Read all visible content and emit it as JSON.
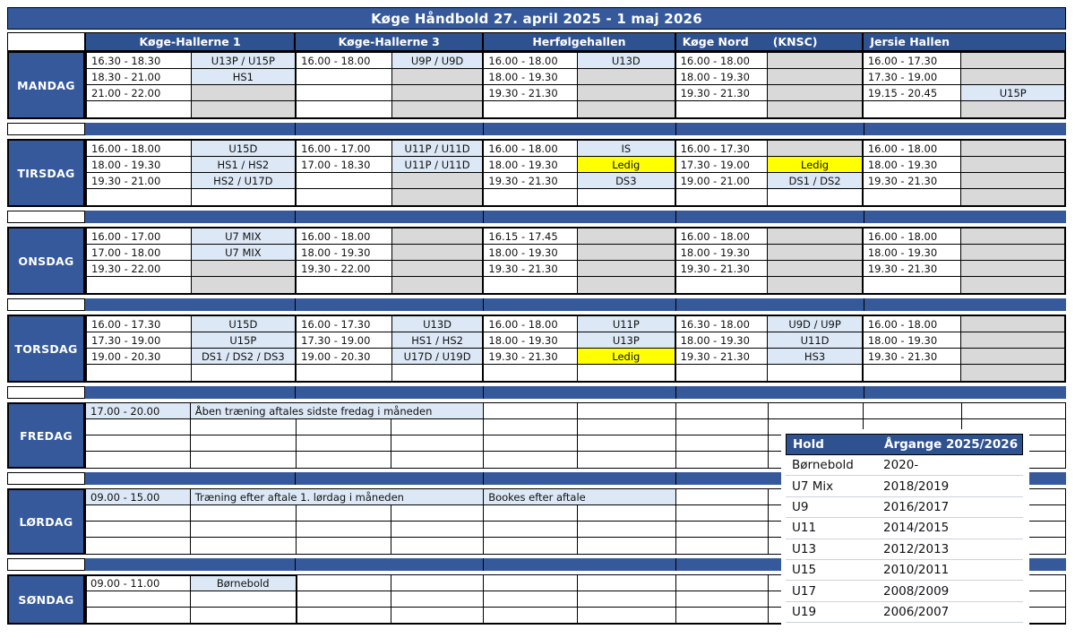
{
  "title": "Køge Håndbold 27. april 2025 - 1 maj 2026",
  "colors": {
    "band_blue": "#35599b",
    "header_blue": "#2e5190",
    "team_lightblue": "#dce8f6",
    "unavailable_gray": "#d9d9d9",
    "free_yellow": "#ffff00"
  },
  "halls": [
    {
      "label": "Køge-Hallerne 1",
      "align": "center"
    },
    {
      "label": "Køge-Hallerne 3",
      "align": "center"
    },
    {
      "label": "Herfølgehallen",
      "align": "center"
    },
    {
      "label": "Køge Nord",
      "label2": "(KNSC)",
      "align": "left"
    },
    {
      "label": "Jersie Hallen",
      "align": "left"
    }
  ],
  "days": [
    {
      "label": "MANDAG",
      "frame": "thick",
      "rows": [
        [
          {
            "t": "16.30 - 18.30"
          },
          {
            "t": "U13P / U15P",
            "bg": "b"
          },
          {
            "t": "16.00 - 18.00"
          },
          {
            "t": "U9P / U9D",
            "bg": "b"
          },
          {
            "t": "16.00 - 18.00"
          },
          {
            "t": "U13D",
            "bg": "b"
          },
          {
            "t": "16.00 - 18.00"
          },
          {
            "bg": "g"
          },
          {
            "t": "16.00 - 17.30"
          },
          {
            "bg": "g"
          }
        ],
        [
          {
            "t": "18.30 - 21.00"
          },
          {
            "t": "HS1",
            "bg": "b"
          },
          {},
          {
            "bg": "g"
          },
          {
            "t": "18.00 - 19.30"
          },
          {
            "bg": "g"
          },
          {
            "t": "18.00 - 19.30"
          },
          {
            "bg": "g"
          },
          {
            "t": "17.30 - 19.00"
          },
          {
            "bg": "g"
          }
        ],
        [
          {
            "t": "21.00 - 22.00"
          },
          {
            "bg": "g"
          },
          {},
          {
            "bg": "g"
          },
          {
            "t": "19.30 - 21.30"
          },
          {
            "bg": "g"
          },
          {
            "t": "19.30 - 21.30"
          },
          {
            "bg": "g"
          },
          {
            "t": "19.15 - 20.45"
          },
          {
            "t": "U15P",
            "bg": "b"
          }
        ],
        [
          {},
          {
            "bg": "g"
          },
          {},
          {
            "bg": "g"
          },
          {},
          {
            "bg": "g"
          },
          {},
          {
            "bg": "g"
          },
          {},
          {
            "bg": "g"
          }
        ]
      ]
    },
    {
      "label": "TIRSDAG",
      "frame": "thick",
      "rows": [
        [
          {
            "t": "16.00 - 18.00"
          },
          {
            "t": "U15D",
            "bg": "b"
          },
          {
            "t": "16.00 - 17.00"
          },
          {
            "t": "U11P / U11D",
            "bg": "b"
          },
          {
            "t": "16.00 - 18.00"
          },
          {
            "t": "IS",
            "bg": "b"
          },
          {
            "t": "16.00 - 17.30"
          },
          {
            "bg": "g"
          },
          {
            "t": "16.00 - 18.00"
          },
          {
            "bg": "g"
          }
        ],
        [
          {
            "t": "18.00 - 19.30"
          },
          {
            "t": "HS1 / HS2",
            "bg": "b"
          },
          {
            "t": "17.00 - 18.30"
          },
          {
            "t": "U11P / U11D",
            "bg": "b"
          },
          {
            "t": "18.00 - 19.30"
          },
          {
            "t": "Ledig",
            "bg": "y"
          },
          {
            "t": "17.30 - 19.00"
          },
          {
            "t": "Ledig",
            "bg": "y"
          },
          {
            "t": "18.00 - 19.30"
          },
          {
            "bg": "g"
          }
        ],
        [
          {
            "t": "19.30 - 21.00"
          },
          {
            "t": "HS2 / U17D",
            "bg": "b"
          },
          {},
          {
            "bg": "g"
          },
          {
            "t": "19.30 - 21.30"
          },
          {
            "t": "DS3",
            "bg": "b"
          },
          {
            "t": "19.00 - 21.00"
          },
          {
            "t": "DS1 / DS2",
            "bg": "b"
          },
          {
            "t": "19.30 - 21.30"
          },
          {
            "bg": "g"
          }
        ],
        [
          {},
          {},
          {},
          {
            "bg": "g"
          },
          {},
          {},
          {},
          {},
          {},
          {
            "bg": "g"
          }
        ]
      ]
    },
    {
      "label": "ONSDAG",
      "frame": "thick",
      "rows": [
        [
          {
            "t": "16.00 - 17.00"
          },
          {
            "t": "U7 MIX",
            "bg": "b"
          },
          {
            "t": "16.00 - 18.00"
          },
          {
            "bg": "g"
          },
          {
            "t": "16.15 - 17.45"
          },
          {
            "bg": "g"
          },
          {
            "t": "16.00 - 18.00"
          },
          {
            "bg": "g"
          },
          {
            "t": "16.00 - 18.00"
          },
          {
            "bg": "g"
          }
        ],
        [
          {
            "t": "17.00 - 18.00"
          },
          {
            "t": "U7 MIX",
            "bg": "b"
          },
          {
            "t": "18.00 - 19.30"
          },
          {
            "bg": "g"
          },
          {
            "t": "18.00 - 19.30"
          },
          {
            "bg": "g"
          },
          {
            "t": "18.00 - 19.30"
          },
          {
            "bg": "g"
          },
          {
            "t": "18.00 - 19.30"
          },
          {
            "bg": "g"
          }
        ],
        [
          {
            "t": "19.30 - 22.00"
          },
          {
            "bg": "g"
          },
          {
            "t": "19.30 - 22.00"
          },
          {
            "bg": "g"
          },
          {
            "t": "19.30 - 21.30"
          },
          {
            "bg": "g"
          },
          {
            "t": "19.30 - 21.30"
          },
          {
            "bg": "g"
          },
          {
            "t": "19.30 - 21.30"
          },
          {
            "bg": "g"
          }
        ],
        [
          {},
          {
            "bg": "g"
          },
          {},
          {
            "bg": "g"
          },
          {},
          {
            "bg": "g"
          },
          {},
          {
            "bg": "g"
          },
          {},
          {
            "bg": "g"
          }
        ]
      ]
    },
    {
      "label": "TORSDAG",
      "frame": "thick",
      "rows": [
        [
          {
            "t": "16.00 - 17.30"
          },
          {
            "t": "U15D",
            "bg": "b"
          },
          {
            "t": "16.00 - 17.30"
          },
          {
            "t": "U13D",
            "bg": "b"
          },
          {
            "t": "16.00 - 18.00"
          },
          {
            "t": "U11P",
            "bg": "b"
          },
          {
            "t": "16.30 - 18.00"
          },
          {
            "t": "U9D / U9P",
            "bg": "b"
          },
          {
            "t": "16.00 - 18.00"
          },
          {
            "bg": "g"
          }
        ],
        [
          {
            "t": "17.30 - 19.00"
          },
          {
            "t": "U15P",
            "bg": "b"
          },
          {
            "t": "17.30 - 19.00"
          },
          {
            "t": "HS1 / HS2",
            "bg": "b"
          },
          {
            "t": "18.00 - 19.30"
          },
          {
            "t": "U13P",
            "bg": "b"
          },
          {
            "t": "18.00 - 19.30"
          },
          {
            "t": "U11D",
            "bg": "b"
          },
          {
            "t": "18.00 - 19.30"
          },
          {
            "bg": "g"
          }
        ],
        [
          {
            "t": "19.00 - 20.30"
          },
          {
            "t": "DS1 / DS2 / DS3",
            "bg": "b"
          },
          {
            "t": "19.00 - 20.30"
          },
          {
            "t": "U17D / U19D",
            "bg": "b"
          },
          {
            "t": "19.30 - 21.30"
          },
          {
            "t": "Ledig",
            "bg": "y"
          },
          {
            "t": "19.30 - 21.30"
          },
          {
            "t": "HS3",
            "bg": "b"
          },
          {
            "t": "19.30 - 21.30"
          },
          {
            "bg": "g"
          }
        ],
        [
          {},
          {},
          {},
          {},
          {},
          {},
          {},
          {},
          {},
          {
            "bg": "g"
          }
        ]
      ]
    },
    {
      "label": "FREDAG",
      "frame": "thin",
      "rows": [
        [
          {
            "t": "17.00 - 20.00",
            "bg": "b"
          },
          {
            "t": "Åben træning aftales sidste fredag i måneden",
            "bg": "b",
            "sp": 3
          },
          {},
          {},
          {},
          {},
          {},
          {}
        ],
        [
          {},
          {},
          {},
          {},
          {},
          {},
          {},
          {},
          {},
          {}
        ],
        [
          {},
          {},
          {},
          {},
          {},
          {},
          {},
          {},
          {},
          {}
        ],
        [
          {},
          {},
          {},
          {},
          {},
          {},
          {},
          {},
          {},
          {}
        ]
      ]
    },
    {
      "label": "LØRDAG",
      "frame": "thin",
      "rows": [
        [
          {
            "t": "09.00 - 15.00",
            "bg": "b"
          },
          {
            "t": "Træning efter aftale 1. lørdag i måneden",
            "bg": "b",
            "sp": 3
          },
          {
            "t": "Bookes efter aftale",
            "bg": "b",
            "sp": 2
          },
          {},
          {},
          {},
          {}
        ],
        [
          {},
          {},
          {},
          {},
          {},
          {},
          {},
          {},
          {},
          {}
        ],
        [
          {},
          {},
          {},
          {},
          {},
          {},
          {},
          {},
          {},
          {}
        ],
        [
          {},
          {},
          {},
          {},
          {},
          {},
          {},
          {},
          {},
          {}
        ]
      ]
    },
    {
      "label": "SØNDAG",
      "frame": "thin",
      "kh1_thick": true,
      "rows": [
        [
          {
            "t": "09.00 - 11.00"
          },
          {
            "t": "Børnebold",
            "bg": "b"
          },
          {},
          {},
          {},
          {},
          {},
          {},
          {},
          {}
        ],
        [
          {},
          {},
          {},
          {},
          {},
          {},
          {},
          {},
          {},
          {}
        ],
        [
          {},
          {},
          {},
          {},
          {},
          {},
          {},
          {},
          {},
          {}
        ]
      ]
    }
  ],
  "legend": {
    "headers": [
      "Hold",
      "Årgange 2025/2026"
    ],
    "rows": [
      [
        "Børnebold",
        "2020-"
      ],
      [
        "U7 Mix",
        "2018/2019"
      ],
      [
        "U9",
        "2016/2017"
      ],
      [
        "U11",
        "2014/2015"
      ],
      [
        "U13",
        "2012/2013"
      ],
      [
        "U15",
        "2010/2011"
      ],
      [
        "U17",
        "2008/2009"
      ],
      [
        "U19",
        "2006/2007"
      ]
    ]
  }
}
